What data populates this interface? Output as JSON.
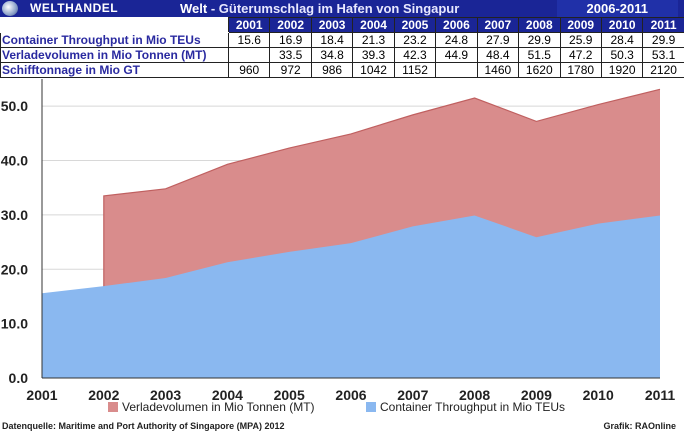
{
  "header": {
    "brand": "WELTHANDEL",
    "title_main": "Welt",
    "title_sub": " - Güterumschlag im Hafen von Singapur",
    "period": "2006-2011"
  },
  "table": {
    "years": [
      "2001",
      "2002",
      "2003",
      "2004",
      "2005",
      "2006",
      "2007",
      "2008",
      "2009",
      "2010",
      "2011"
    ],
    "rows": [
      {
        "label": "Container Throughput in Mio TEUs",
        "values": [
          "15.6",
          "16.9",
          "18.4",
          "21.3",
          "23.2",
          "24.8",
          "27.9",
          "29.9",
          "25.9",
          "28.4",
          "29.9"
        ]
      },
      {
        "label": "Verladevolumen in Mio Tonnen (MT)",
        "values": [
          "",
          "33.5",
          "34.8",
          "39.3",
          "42.3",
          "44.9",
          "48.4",
          "51.5",
          "47.2",
          "50.3",
          "53.1"
        ]
      },
      {
        "label": "Schifftonnage in Mio GT",
        "values": [
          "960",
          "972",
          "986",
          "1042",
          "1152",
          "",
          "1460",
          "1620",
          "1780",
          "1920",
          "2120"
        ]
      }
    ]
  },
  "chart_data": {
    "type": "area",
    "x": [
      2001,
      2002,
      2003,
      2004,
      2005,
      2006,
      2007,
      2008,
      2009,
      2010,
      2011
    ],
    "series": [
      {
        "name": "Verladevolumen in Mio Tonnen (MT)",
        "color": "#d98c8c",
        "values": [
          null,
          33.5,
          34.8,
          39.3,
          42.3,
          44.9,
          48.4,
          51.5,
          47.2,
          50.3,
          53.1
        ]
      },
      {
        "name": "Container Throughput in Mio TEUs",
        "color": "#8ab8f0",
        "values": [
          15.6,
          16.9,
          18.4,
          21.3,
          23.2,
          24.8,
          27.9,
          29.9,
          25.9,
          28.4,
          29.9
        ]
      }
    ],
    "xlabels": [
      "2001",
      "2002",
      "2003",
      "2004",
      "2005",
      "2006",
      "2007",
      "2008",
      "2009",
      "2010",
      "2011"
    ],
    "yticks": [
      "0.0",
      "10.0",
      "20.0",
      "30.0",
      "40.0",
      "50.0"
    ],
    "ylim": [
      0,
      55
    ],
    "legend_position": "bottom"
  },
  "footer": {
    "source": "Datenquelle: Maritime and Port Authority of Singapore (MPA) 2012",
    "credit": "Grafik: RAOnline"
  }
}
